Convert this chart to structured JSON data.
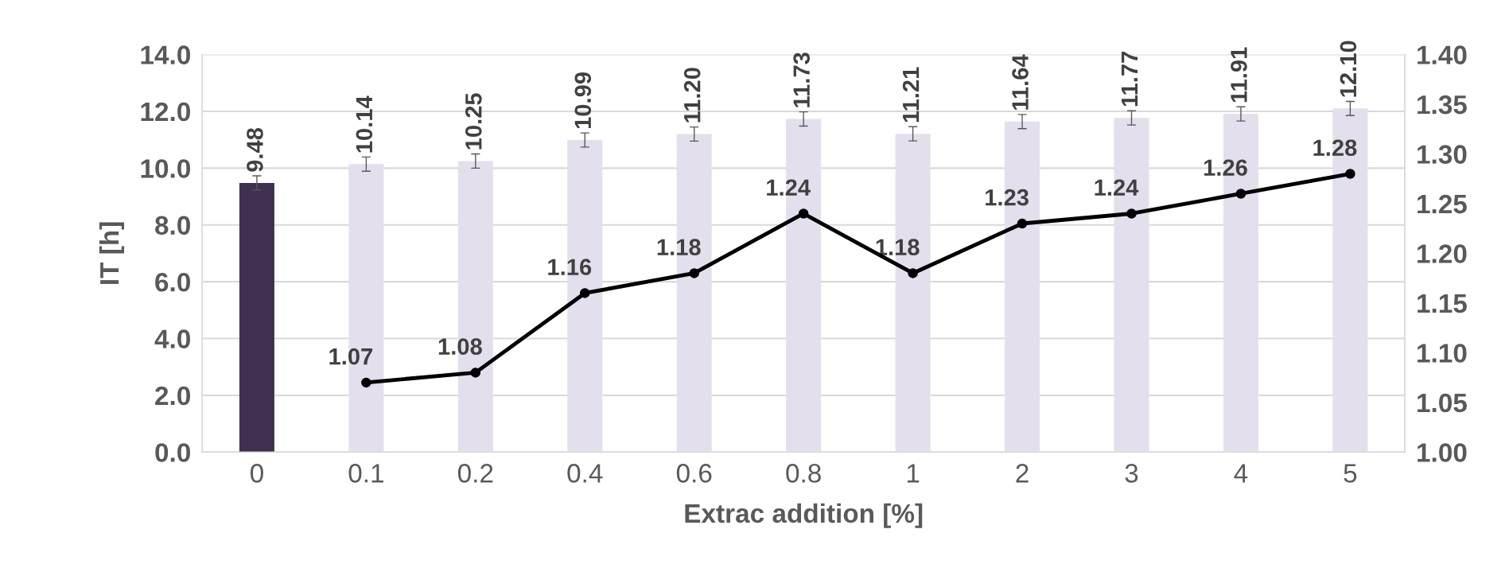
{
  "chart_data": {
    "type": "bar",
    "xlabel": "Extrac addition [%]",
    "ylabel": "IT [h]",
    "categories": [
      "0",
      "0.1",
      "0.2",
      "0.4",
      "0.6",
      "0.8",
      "1",
      "2",
      "3",
      "4",
      "5"
    ],
    "series": [
      {
        "colors": [
          "#3f2f50",
          "#e4dfec",
          "#e4dfec",
          "#e4dfec",
          "#e4dfec",
          "#e4dfec",
          "#e4dfec",
          "#e4dfec",
          "#e4dfec",
          "#e4dfec",
          "#e4dfec"
        ],
        "values": [
          9.48,
          10.14,
          10.25,
          10.99,
          11.2,
          11.73,
          11.21,
          11.64,
          11.77,
          11.91,
          12.1
        ],
        "value_labels": [
          "9.48",
          "10.14",
          "10.25",
          "10.99",
          "11.20",
          "11.73",
          "11.21",
          "11.64",
          "11.77",
          "11.91",
          "12.10"
        ],
        "errors": [
          0.25,
          0.25,
          0.25,
          0.25,
          0.25,
          0.25,
          0.25,
          0.25,
          0.25,
          0.25,
          0.25
        ]
      },
      {
        "type": "line",
        "axis": "y2",
        "color": "#000000",
        "marker": "circle",
        "line_style": "solid",
        "values": [
          null,
          1.07,
          1.08,
          1.16,
          1.18,
          1.24,
          1.18,
          1.23,
          1.24,
          1.26,
          1.28
        ],
        "value_labels": [
          null,
          "1.07",
          "1.08",
          "1.16",
          "1.18",
          "1.24",
          "1.18",
          "1.23",
          "1.24",
          "1.26",
          "1.28"
        ]
      }
    ],
    "ylim": [
      0,
      14
    ],
    "yticks": [
      {
        "value": 0,
        "label": "0.0"
      },
      {
        "value": 2,
        "label": "2.0"
      },
      {
        "value": 4,
        "label": "4.0"
      },
      {
        "value": 6,
        "label": "6.0"
      },
      {
        "value": 8,
        "label": "8.0"
      },
      {
        "value": 10,
        "label": "10.0"
      },
      {
        "value": 12,
        "label": "12.0"
      },
      {
        "value": 14,
        "label": "14.0"
      }
    ],
    "y2lim": [
      1.0,
      1.4
    ],
    "y2ticks": [
      {
        "value": 1.0,
        "label": "1.00"
      },
      {
        "value": 1.05,
        "label": "1.05"
      },
      {
        "value": 1.1,
        "label": "1.10"
      },
      {
        "value": 1.15,
        "label": "1.15"
      },
      {
        "value": 1.2,
        "label": "1.20"
      },
      {
        "value": 1.25,
        "label": "1.25"
      },
      {
        "value": 1.3,
        "label": "1.30"
      },
      {
        "value": 1.35,
        "label": "1.35"
      },
      {
        "value": 1.4,
        "label": "1.40"
      }
    ],
    "grid": "y",
    "legend": false
  }
}
